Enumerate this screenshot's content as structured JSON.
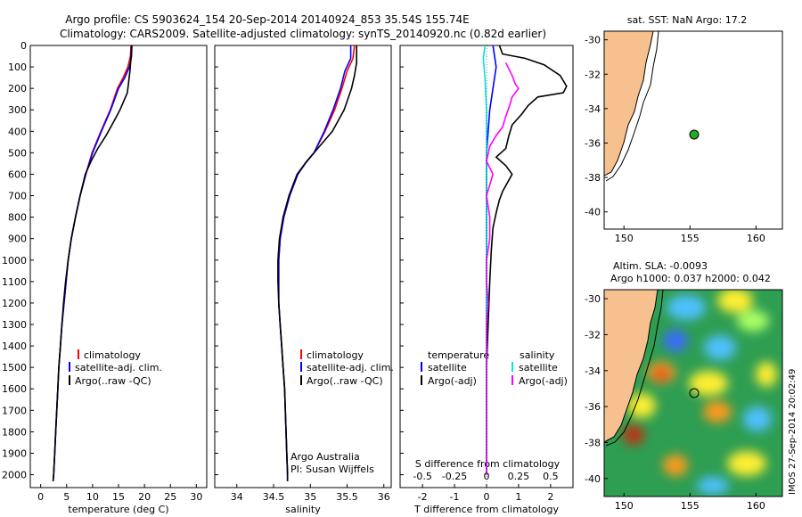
{
  "header": {
    "line1": "Argo profile: CS 5903624_154 20-Sep-2014 20140924_853 35.54S 155.74E",
    "line2": "Climatology: CARS2009. Satellite-adjusted climatology: synTS_20140920.nc (0.82d earlier)"
  },
  "side_label": "IMOS 27-Sep-2014 20:02:49",
  "colors": {
    "climatology": "#ff0000",
    "satellite": "#0000ff",
    "argo": "#000000",
    "sal_satellite": "#00e5e5",
    "sal_argo": "#ff00ff",
    "land": "#f6c08f",
    "float_marker": "#22aa22"
  },
  "chart_data": [
    {
      "type": "line",
      "id": "temperature",
      "xlabel": "temperature (deg C)",
      "ylabel": "",
      "xlim": [
        -2,
        32
      ],
      "ylim": [
        2060,
        0
      ],
      "xticks": [
        0,
        5,
        10,
        15,
        20,
        25,
        30
      ],
      "yticks": [
        0,
        100,
        200,
        300,
        400,
        500,
        600,
        700,
        800,
        900,
        1000,
        1100,
        1200,
        1300,
        1400,
        1500,
        1600,
        1700,
        1800,
        1900,
        2000
      ],
      "legend": [
        "climatology",
        "satellite-adj. clim.",
        "Argo(..raw -QC)"
      ],
      "series": [
        {
          "name": "climatology",
          "color": "#ff0000",
          "points": [
            [
              17.4,
              0
            ],
            [
              17.3,
              50
            ],
            [
              16.8,
              100
            ],
            [
              15.9,
              150
            ],
            [
              14.8,
              200
            ],
            [
              13.4,
              300
            ],
            [
              11.6,
              400
            ],
            [
              9.9,
              500
            ],
            [
              8.7,
              600
            ],
            [
              7.6,
              700
            ],
            [
              6.7,
              800
            ],
            [
              5.9,
              900
            ],
            [
              5.3,
              1000
            ],
            [
              4.9,
              1100
            ],
            [
              4.5,
              1200
            ],
            [
              4.1,
              1300
            ],
            [
              3.8,
              1400
            ],
            [
              3.5,
              1500
            ],
            [
              3.3,
              1600
            ],
            [
              3.1,
              1700
            ],
            [
              2.9,
              1800
            ],
            [
              2.7,
              1900
            ],
            [
              2.5,
              2000
            ],
            [
              2.4,
              2030
            ]
          ]
        },
        {
          "name": "satellite-adj. clim.",
          "color": "#0000ff",
          "points": [
            [
              17.6,
              0
            ],
            [
              17.5,
              50
            ],
            [
              17.1,
              100
            ],
            [
              16.2,
              150
            ],
            [
              15.0,
              200
            ],
            [
              13.5,
              300
            ],
            [
              11.7,
              400
            ],
            [
              10.0,
              500
            ],
            [
              8.7,
              600
            ],
            [
              7.6,
              700
            ],
            [
              6.7,
              800
            ],
            [
              5.9,
              900
            ],
            [
              5.3,
              1000
            ],
            [
              4.9,
              1100
            ],
            [
              4.5,
              1200
            ],
            [
              4.1,
              1300
            ],
            [
              3.8,
              1400
            ],
            [
              3.5,
              1500
            ],
            [
              3.3,
              1600
            ],
            [
              3.1,
              1700
            ],
            [
              2.9,
              1800
            ],
            [
              2.7,
              1900
            ],
            [
              2.5,
              2000
            ],
            [
              2.4,
              2030
            ]
          ]
        },
        {
          "name": "Argo(..raw -QC)",
          "color": "#000000",
          "points": [
            [
              17.5,
              0
            ],
            [
              17.4,
              60
            ],
            [
              17.2,
              120
            ],
            [
              16.9,
              180
            ],
            [
              16.7,
              220
            ],
            [
              16.0,
              260
            ],
            [
              15.3,
              300
            ],
            [
              14.2,
              350
            ],
            [
              12.6,
              420
            ],
            [
              11.0,
              480
            ],
            [
              9.7,
              540
            ],
            [
              8.6,
              600
            ],
            [
              7.6,
              700
            ],
            [
              6.7,
              800
            ],
            [
              5.9,
              900
            ],
            [
              5.3,
              1000
            ],
            [
              4.8,
              1100
            ],
            [
              4.4,
              1200
            ],
            [
              4.1,
              1300
            ],
            [
              3.8,
              1400
            ],
            [
              3.5,
              1500
            ],
            [
              3.3,
              1600
            ],
            [
              3.1,
              1700
            ],
            [
              2.9,
              1800
            ],
            [
              2.7,
              1900
            ],
            [
              2.5,
              2000
            ],
            [
              2.4,
              2030
            ]
          ]
        }
      ]
    },
    {
      "type": "line",
      "id": "salinity",
      "xlabel": "salinity",
      "ylabel": "",
      "xlim": [
        33.7,
        36.1
      ],
      "ylim": [
        2060,
        0
      ],
      "xticks": [
        34,
        34.5,
        35,
        35.5,
        36
      ],
      "legend": [
        "climatology",
        "satellite-adj. clim.",
        "Argo(..raw -QC)"
      ],
      "annotation": [
        "Argo Australia",
        "PI: Susan Wijffels"
      ],
      "series": [
        {
          "name": "climatology",
          "color": "#ff0000",
          "points": [
            [
              35.6,
              0
            ],
            [
              35.58,
              60
            ],
            [
              35.5,
              120
            ],
            [
              35.43,
              200
            ],
            [
              35.33,
              300
            ],
            [
              35.2,
              400
            ],
            [
              35.05,
              500
            ],
            [
              34.93,
              550
            ],
            [
              34.83,
              600
            ],
            [
              34.72,
              700
            ],
            [
              34.64,
              800
            ],
            [
              34.59,
              900
            ],
            [
              34.57,
              1000
            ],
            [
              34.57,
              1100
            ],
            [
              34.57,
              1200
            ],
            [
              34.59,
              1300
            ],
            [
              34.61,
              1400
            ],
            [
              34.63,
              1500
            ],
            [
              34.65,
              1600
            ],
            [
              34.66,
              1700
            ],
            [
              34.67,
              1800
            ],
            [
              34.68,
              1900
            ],
            [
              34.69,
              2000
            ],
            [
              34.69,
              2030
            ]
          ]
        },
        {
          "name": "satellite-adj. clim.",
          "color": "#0000ff",
          "points": [
            [
              35.55,
              0
            ],
            [
              35.55,
              60
            ],
            [
              35.47,
              120
            ],
            [
              35.41,
              200
            ],
            [
              35.31,
              300
            ],
            [
              35.19,
              400
            ],
            [
              35.05,
              500
            ],
            [
              34.93,
              550
            ],
            [
              34.83,
              600
            ],
            [
              34.72,
              700
            ],
            [
              34.64,
              800
            ],
            [
              34.59,
              900
            ],
            [
              34.57,
              1000
            ],
            [
              34.57,
              1100
            ],
            [
              34.57,
              1200
            ],
            [
              34.59,
              1300
            ],
            [
              34.61,
              1400
            ],
            [
              34.63,
              1500
            ],
            [
              34.65,
              1600
            ],
            [
              34.66,
              1700
            ],
            [
              34.67,
              1800
            ],
            [
              34.68,
              1900
            ],
            [
              34.69,
              2000
            ],
            [
              34.69,
              2030
            ]
          ]
        },
        {
          "name": "Argo(..raw -QC)",
          "color": "#000000",
          "points": [
            [
              35.63,
              0
            ],
            [
              35.63,
              80
            ],
            [
              35.6,
              140
            ],
            [
              35.56,
              200
            ],
            [
              35.46,
              300
            ],
            [
              35.3,
              400
            ],
            [
              35.1,
              480
            ],
            [
              34.95,
              540
            ],
            [
              34.82,
              600
            ],
            [
              34.71,
              700
            ],
            [
              34.63,
              800
            ],
            [
              34.58,
              900
            ],
            [
              34.56,
              1000
            ],
            [
              34.56,
              1100
            ],
            [
              34.57,
              1200
            ],
            [
              34.59,
              1300
            ],
            [
              34.61,
              1400
            ],
            [
              34.63,
              1500
            ],
            [
              34.65,
              1600
            ],
            [
              34.66,
              1700
            ],
            [
              34.67,
              1800
            ],
            [
              34.68,
              1900
            ],
            [
              34.69,
              2000
            ],
            [
              34.69,
              2030
            ]
          ]
        }
      ]
    },
    {
      "type": "line",
      "id": "difference",
      "xlabel": "T difference from climatology",
      "top_label": "S difference from climatology",
      "xlim": [
        -2.7,
        2.7
      ],
      "ylim": [
        2060,
        0
      ],
      "xticks": [
        -2,
        -1,
        0,
        1,
        2
      ],
      "top_ticks": [
        "-0.5",
        "-0.25",
        "0",
        "0.25",
        "0.5"
      ],
      "top_tick_positions": [
        -2,
        -1,
        0,
        1,
        2
      ],
      "legend_temperature": [
        "temperature",
        "satellite",
        "Argo(-adj)"
      ],
      "legend_salinity": [
        "salinity",
        "satellite",
        "Argo(-adj)"
      ],
      "series": [
        {
          "name": "T satellite",
          "color": "#0000ff",
          "points": [
            [
              0.2,
              0
            ],
            [
              0.3,
              100
            ],
            [
              0.2,
              200
            ],
            [
              0.1,
              300
            ],
            [
              0.05,
              400
            ],
            [
              0.0,
              500
            ],
            [
              0.0,
              600
            ],
            [
              0.0,
              800
            ],
            [
              0.0,
              1000
            ],
            [
              0.0,
              1500
            ],
            [
              0.0,
              2000
            ]
          ]
        },
        {
          "name": "T Argo(-adj)",
          "color": "#000000",
          "points": [
            [
              0.4,
              0
            ],
            [
              0.5,
              40
            ],
            [
              1.2,
              60
            ],
            [
              1.8,
              90
            ],
            [
              2.3,
              140
            ],
            [
              2.5,
              190
            ],
            [
              2.4,
              220
            ],
            [
              1.6,
              240
            ],
            [
              1.3,
              280
            ],
            [
              1.1,
              320
            ],
            [
              0.8,
              370
            ],
            [
              0.7,
              420
            ],
            [
              0.6,
              480
            ],
            [
              0.3,
              520
            ],
            [
              0.6,
              560
            ],
            [
              0.8,
              600
            ],
            [
              0.5,
              680
            ],
            [
              0.4,
              720
            ],
            [
              0.3,
              780
            ],
            [
              0.2,
              850
            ],
            [
              0.15,
              950
            ],
            [
              0.1,
              1100
            ],
            [
              0.05,
              1300
            ],
            [
              0.0,
              1500
            ],
            [
              0.0,
              1700
            ],
            [
              0.0,
              2000
            ]
          ]
        },
        {
          "name": "S satellite",
          "color": "#00e5e5",
          "points": [
            [
              -0.05,
              0
            ],
            [
              -0.1,
              60
            ],
            [
              -0.05,
              150
            ],
            [
              0.0,
              300
            ],
            [
              0.0,
              600
            ],
            [
              0.0,
              1000
            ],
            [
              0.0,
              1500
            ],
            [
              0.0,
              2000
            ]
          ]
        },
        {
          "name": "S Argo(-adj)",
          "color": "#ff00ff",
          "points": [
            [
              0.6,
              80
            ],
            [
              0.8,
              140
            ],
            [
              0.9,
              180
            ],
            [
              1.0,
              200
            ],
            [
              0.8,
              240
            ],
            [
              0.7,
              290
            ],
            [
              0.6,
              330
            ],
            [
              0.5,
              380
            ],
            [
              0.3,
              420
            ],
            [
              0.1,
              470
            ],
            [
              0.0,
              540
            ],
            [
              0.2,
              600
            ],
            [
              0.0,
              700
            ],
            [
              0.1,
              800
            ],
            [
              0.1,
              900
            ],
            [
              0.0,
              1000
            ],
            [
              0.0,
              1100
            ],
            [
              0.05,
              1200
            ],
            [
              0.0,
              1300
            ],
            [
              0.0,
              1500
            ],
            [
              0.0,
              2000
            ]
          ]
        }
      ]
    },
    {
      "type": "map",
      "id": "sst_map",
      "title": "sat. SST: NaN Argo: 17.2",
      "xlim": [
        148.5,
        162
      ],
      "ylim": [
        -41,
        -29.5
      ],
      "xticks": [
        150,
        155,
        160
      ],
      "yticks": [
        -30,
        -32,
        -34,
        -36,
        -38,
        -40
      ],
      "float_position": [
        155.74,
        -35.54
      ]
    },
    {
      "type": "heatmap",
      "id": "sla_map",
      "title_lines": [
        "Altim. SLA: -0.0093",
        "Argo h1000: 0.037 h2000: 0.042"
      ],
      "xlim": [
        148.5,
        162
      ],
      "ylim": [
        -41,
        -29.5
      ],
      "xticks": [
        150,
        155,
        160
      ],
      "yticks": [
        -30,
        -32,
        -34,
        -36,
        -38,
        -40
      ],
      "float_position": [
        155.74,
        -35.54
      ]
    }
  ]
}
